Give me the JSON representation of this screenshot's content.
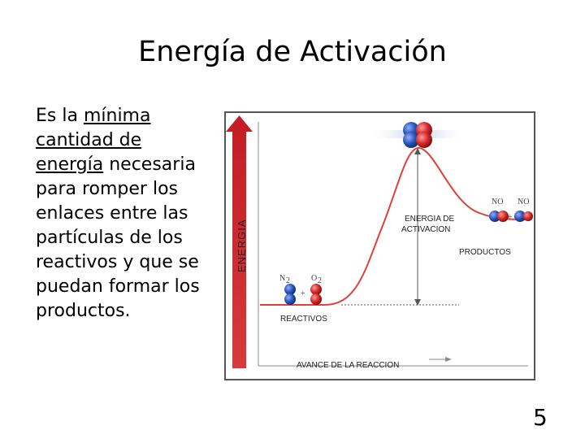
{
  "slide": {
    "title": "Energía de Activación",
    "description": {
      "lead": "Es la",
      "emphasis": "mínima cantidad de energía",
      "rest": "necesaria para romper los enlaces entre las partículas de los reactivos y que se puedan formar los productos."
    },
    "page_number": "5"
  },
  "diagram": {
    "y_axis_label": "ENERGIA",
    "x_axis_label": "AVANCE DE LA REACCION",
    "activation_label_line1": "ENERGIA DE",
    "activation_label_line2": "ACTIVACION",
    "reactants_label": "REACTIVOS",
    "products_label": "PRODUCTOS",
    "reactants": {
      "molecule_1": "N",
      "molecule_1_sub": "2",
      "molecule_2": "O",
      "molecule_2_sub": "2",
      "plus": "+"
    },
    "products": {
      "molecule_1": "NO",
      "molecule_2": "NO",
      "plus": "+"
    },
    "colors": {
      "curve": "#e0403a",
      "arrow": "#c41e24",
      "atom_blue": "#2a55b8",
      "atom_red": "#d42a2a",
      "frame": "#555555"
    }
  }
}
